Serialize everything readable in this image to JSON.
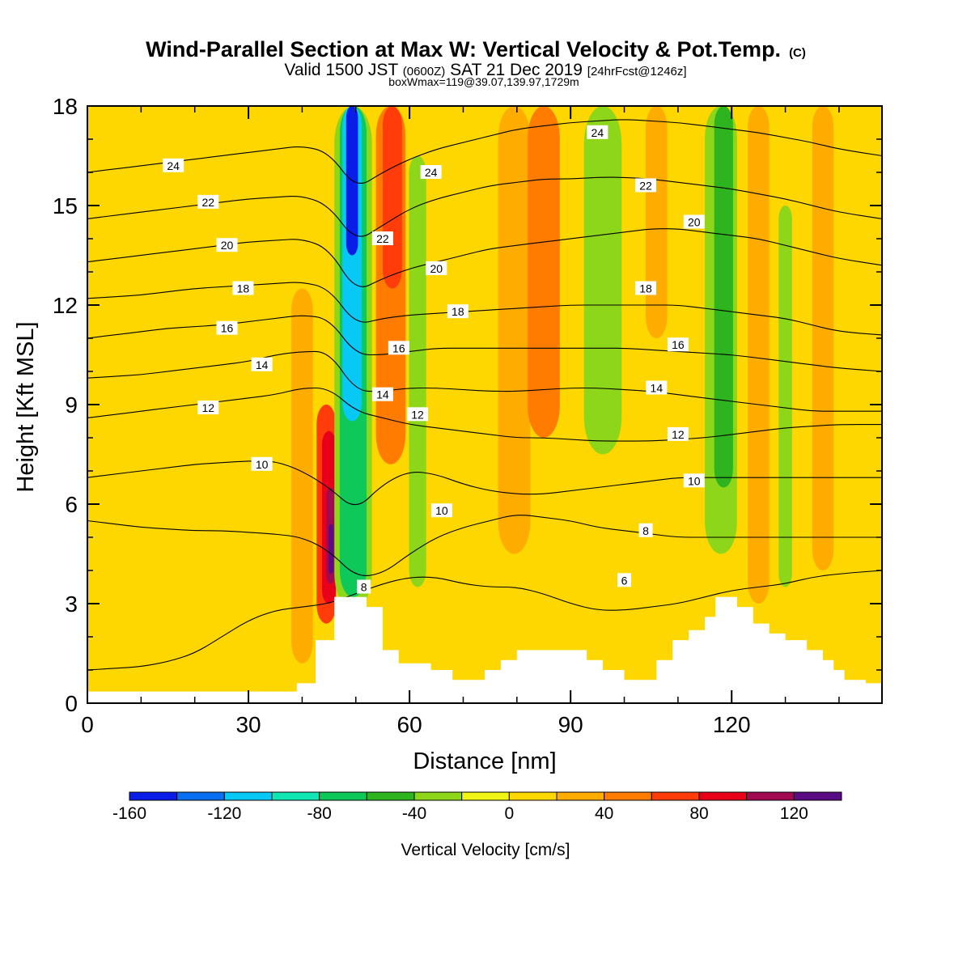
{
  "chart_data": {
    "type": "heatmap",
    "title": "Wind-Parallel Section at Max W: Vertical Velocity & Pot.Temp.",
    "title_mark": "(C)",
    "subtitle": {
      "part1": "Valid 1500 JST",
      "part2": "(0600Z)",
      "part3": "SAT 21 Dec 2019",
      "part4": "[24hrFcst@1246z]"
    },
    "info_line": "boxWmax=119@39.07,139.97,1729m",
    "xlabel": "Distance [nm]",
    "ylabel": "Height [Kft MSL]",
    "xlim": [
      0,
      148
    ],
    "ylim": [
      0,
      18
    ],
    "x_ticks": [
      0,
      30,
      60,
      90,
      120
    ],
    "y_ticks": [
      0,
      3,
      6,
      9,
      12,
      15,
      18
    ],
    "x_tick_labels": [
      "0",
      "30",
      "60",
      "90",
      "120"
    ],
    "y_tick_labels": [
      "0",
      "3",
      "6",
      "9",
      "12",
      "15",
      "18"
    ],
    "colorbar": {
      "label": "Vertical Velocity [cm/s]",
      "bounds": [
        -160,
        -140,
        -120,
        -100,
        -80,
        -60,
        -40,
        -20,
        0,
        20,
        40,
        60,
        80,
        100,
        120,
        140
      ],
      "tick_values": [
        -160,
        -120,
        -80,
        -40,
        0,
        40,
        80,
        120
      ],
      "tick_labels": [
        "-160",
        "-120",
        "-80",
        "-40",
        "0",
        "40",
        "80",
        "120"
      ],
      "colors": [
        "#0a1de6",
        "#0a6ef0",
        "#08c8f5",
        "#10e6b4",
        "#0fc85a",
        "#2db41e",
        "#8ed61a",
        "#f0f514",
        "#ffd700",
        "#ffac00",
        "#ff7c00",
        "#ff3c0a",
        "#e8001a",
        "#a00a50",
        "#5a0a82"
      ]
    },
    "vertical_velocity_bands": [
      {
        "x_center": 40,
        "x_width": 4,
        "y_bottom": 1.2,
        "y_top": 12.5,
        "value": 30
      },
      {
        "x_center": 44.5,
        "x_width": 3.6,
        "y_bottom": 2.4,
        "y_top": 9,
        "value": 60
      },
      {
        "x_center": 45,
        "x_width": 2.6,
        "y_bottom": 3.0,
        "y_top": 8.2,
        "value": 85
      },
      {
        "x_center": 45.3,
        "x_width": 1.6,
        "y_bottom": 3.6,
        "y_top": 6.5,
        "value": 110
      },
      {
        "x_center": 45.4,
        "x_width": 0.9,
        "y_bottom": 3.9,
        "y_top": 5.4,
        "value": 130
      },
      {
        "x_center": 49.5,
        "x_width": 7,
        "y_bottom": 2.8,
        "y_top": 18,
        "value": -35
      },
      {
        "x_center": 49.5,
        "x_width": 5,
        "y_bottom": 3.2,
        "y_top": 18,
        "value": -70
      },
      {
        "x_center": 49.3,
        "x_width": 3.6,
        "y_bottom": 8.5,
        "y_top": 18,
        "value": -110
      },
      {
        "x_center": 49.3,
        "x_width": 2.2,
        "y_bottom": 13.5,
        "y_top": 18,
        "value": -150
      },
      {
        "x_center": 56.5,
        "x_width": 5.5,
        "y_bottom": 7.2,
        "y_top": 18,
        "value": 50
      },
      {
        "x_center": 56.8,
        "x_width": 3.6,
        "y_bottom": 12.5,
        "y_top": 18,
        "value": 75
      },
      {
        "x_center": 61.5,
        "x_width": 3.2,
        "y_bottom": 3.5,
        "y_top": 16.5,
        "value": -25
      },
      {
        "x_center": 79.5,
        "x_width": 6,
        "y_bottom": 4.5,
        "y_top": 18,
        "value": 30
      },
      {
        "x_center": 85,
        "x_width": 6,
        "y_bottom": 8,
        "y_top": 18,
        "value": 45
      },
      {
        "x_center": 96,
        "x_width": 7,
        "y_bottom": 7.5,
        "y_top": 18,
        "value": -30
      },
      {
        "x_center": 106,
        "x_width": 4,
        "y_bottom": 11,
        "y_top": 18,
        "value": 30
      },
      {
        "x_center": 118,
        "x_width": 6,
        "y_bottom": 4.5,
        "y_top": 18,
        "value": -30
      },
      {
        "x_center": 118.5,
        "x_width": 3.5,
        "y_bottom": 6.5,
        "y_top": 18,
        "value": -45
      },
      {
        "x_center": 125,
        "x_width": 4,
        "y_bottom": 3,
        "y_top": 18,
        "value": 30
      },
      {
        "x_center": 130,
        "x_width": 2.5,
        "y_bottom": 3.5,
        "y_top": 15,
        "value": -25
      },
      {
        "x_center": 137,
        "x_width": 4,
        "y_bottom": 4,
        "y_top": 18,
        "value": 25
      }
    ],
    "theta_contours": [
      {
        "level": 6,
        "y": [
          1.0,
          1.05,
          1.1,
          1.25,
          1.5,
          2.0,
          2.5,
          2.8,
          2.9,
          3.0,
          3.3,
          3.6,
          3.8,
          3.8,
          3.6,
          3.5,
          3.5,
          3.3,
          3.0,
          2.8,
          2.8,
          2.9,
          3.0,
          3.2,
          3.4,
          3.5,
          3.6,
          3.8,
          3.9,
          4.0
        ]
      },
      {
        "level": 8,
        "y": [
          5.5,
          5.4,
          5.3,
          5.25,
          5.2,
          5.2,
          5.15,
          5.1,
          5.0,
          4.6,
          3.8,
          3.9,
          4.5,
          5.0,
          5.3,
          5.5,
          5.7,
          5.6,
          5.5,
          5.3,
          5.2,
          5.1,
          5.0,
          5.0,
          5.0,
          5.0,
          5.0,
          5.0,
          5.0,
          5.0
        ]
      },
      {
        "level": 10,
        "y": [
          6.8,
          6.9,
          7.0,
          7.1,
          7.2,
          7.25,
          7.3,
          7.3,
          7.0,
          6.5,
          5.8,
          6.6,
          7.0,
          6.9,
          6.6,
          6.4,
          6.3,
          6.3,
          6.4,
          6.5,
          6.6,
          6.7,
          6.8,
          6.8,
          6.8,
          6.8,
          6.8,
          6.8,
          6.8,
          6.8
        ]
      },
      {
        "level": 12,
        "y": [
          8.6,
          8.7,
          8.8,
          8.9,
          9.0,
          9.1,
          9.2,
          9.3,
          9.5,
          9.5,
          8.8,
          8.6,
          8.4,
          8.3,
          8.2,
          8.1,
          8.0,
          8.0,
          7.95,
          7.9,
          7.9,
          7.9,
          7.95,
          8.0,
          8.1,
          8.2,
          8.3,
          8.35,
          8.4,
          8.4
        ]
      },
      {
        "level": 14,
        "y": [
          9.8,
          9.85,
          9.9,
          10.0,
          10.1,
          10.2,
          10.3,
          10.5,
          10.6,
          10.6,
          9.4,
          9.4,
          9.5,
          9.5,
          9.45,
          9.4,
          9.4,
          9.45,
          9.5,
          9.5,
          9.45,
          9.4,
          9.3,
          9.2,
          9.1,
          9.0,
          8.9,
          8.8,
          8.8,
          8.8
        ]
      },
      {
        "level": 16,
        "y": [
          11.0,
          11.1,
          11.2,
          11.3,
          11.35,
          11.4,
          11.5,
          11.6,
          11.7,
          11.6,
          10.5,
          10.5,
          10.6,
          10.7,
          10.7,
          10.7,
          10.7,
          10.7,
          10.7,
          10.7,
          10.7,
          10.65,
          10.6,
          10.55,
          10.5,
          10.4,
          10.3,
          10.2,
          10.1,
          10.0
        ]
      },
      {
        "level": 18,
        "y": [
          12.2,
          12.25,
          12.3,
          12.4,
          12.5,
          12.55,
          12.6,
          12.65,
          12.7,
          12.5,
          11.4,
          11.6,
          11.7,
          11.75,
          11.8,
          11.85,
          11.9,
          11.95,
          12.0,
          12.0,
          12.0,
          12.0,
          12.0,
          11.9,
          11.8,
          11.7,
          11.6,
          11.4,
          11.2,
          11.1
        ]
      },
      {
        "level": 20,
        "y": [
          13.3,
          13.4,
          13.5,
          13.6,
          13.7,
          13.8,
          13.9,
          13.95,
          14.0,
          13.7,
          12.4,
          12.8,
          13.1,
          13.3,
          13.5,
          13.7,
          13.8,
          13.9,
          14.0,
          14.1,
          14.2,
          14.3,
          14.3,
          14.2,
          14.1,
          14.0,
          13.8,
          13.6,
          13.4,
          13.2
        ]
      },
      {
        "level": 22,
        "y": [
          14.6,
          14.7,
          14.8,
          14.9,
          15.0,
          15.1,
          15.2,
          15.25,
          15.3,
          15.0,
          13.9,
          14.4,
          14.9,
          15.2,
          15.4,
          15.6,
          15.7,
          15.8,
          15.8,
          15.85,
          15.85,
          15.8,
          15.7,
          15.6,
          15.5,
          15.35,
          15.2,
          15.0,
          14.8,
          14.6
        ]
      },
      {
        "level": 24,
        "y": [
          16.0,
          16.1,
          16.2,
          16.3,
          16.4,
          16.5,
          16.6,
          16.7,
          16.8,
          16.6,
          15.5,
          16.0,
          16.4,
          16.7,
          16.9,
          17.1,
          17.3,
          17.4,
          17.5,
          17.55,
          17.6,
          17.55,
          17.5,
          17.4,
          17.3,
          17.2,
          17.05,
          16.9,
          16.7,
          16.5
        ]
      }
    ],
    "theta_x": [
      0,
      5,
      10,
      15,
      20,
      25,
      30,
      35,
      40,
      45,
      50,
      55,
      60,
      65,
      70,
      75,
      80,
      85,
      90,
      95,
      100,
      105,
      110,
      115,
      120,
      125,
      130,
      135,
      140,
      148
    ],
    "contour_labels": [
      {
        "text": "24",
        "x": 16,
        "y": 16.2
      },
      {
        "text": "22",
        "x": 22.5,
        "y": 15.1
      },
      {
        "text": "20",
        "x": 26,
        "y": 13.8
      },
      {
        "text": "18",
        "x": 29,
        "y": 12.5
      },
      {
        "text": "16",
        "x": 26,
        "y": 11.3
      },
      {
        "text": "14",
        "x": 32.5,
        "y": 10.2
      },
      {
        "text": "12",
        "x": 22.5,
        "y": 8.9
      },
      {
        "text": "10",
        "x": 32.5,
        "y": 7.2
      },
      {
        "text": "22",
        "x": 55,
        "y": 14.0
      },
      {
        "text": "24",
        "x": 64,
        "y": 16.0
      },
      {
        "text": "20",
        "x": 65,
        "y": 13.1
      },
      {
        "text": "18",
        "x": 69,
        "y": 11.8
      },
      {
        "text": "16",
        "x": 58,
        "y": 10.7
      },
      {
        "text": "14",
        "x": 55,
        "y": 9.3
      },
      {
        "text": "12",
        "x": 61.5,
        "y": 8.7
      },
      {
        "text": "10",
        "x": 66,
        "y": 5.8
      },
      {
        "text": "8",
        "x": 51.5,
        "y": 3.5
      },
      {
        "text": "24",
        "x": 95,
        "y": 17.2
      },
      {
        "text": "22",
        "x": 104,
        "y": 15.6
      },
      {
        "text": "20",
        "x": 113,
        "y": 14.5
      },
      {
        "text": "18",
        "x": 104,
        "y": 12.5
      },
      {
        "text": "16",
        "x": 110,
        "y": 10.8
      },
      {
        "text": "14",
        "x": 106,
        "y": 9.5
      },
      {
        "text": "12",
        "x": 110,
        "y": 8.1
      },
      {
        "text": "10",
        "x": 113,
        "y": 6.7
      },
      {
        "text": "8",
        "x": 104,
        "y": 5.2
      },
      {
        "text": "6",
        "x": 100,
        "y": 3.7
      }
    ],
    "terrain": {
      "x": [
        0,
        39,
        39,
        42.5,
        42.5,
        46,
        46,
        52,
        52,
        55,
        55,
        58,
        58,
        64,
        64,
        68,
        68,
        74,
        74,
        77,
        77,
        80,
        80,
        83,
        83,
        93,
        93,
        96,
        96,
        100,
        100,
        106,
        106,
        109,
        109,
        112,
        112,
        115,
        115,
        117,
        117,
        121,
        121,
        124,
        124,
        127,
        127,
        130,
        130,
        134,
        134,
        137,
        137,
        139,
        139,
        141,
        141,
        145,
        145,
        148
      ],
      "y": [
        0.35,
        0.35,
        0.6,
        0.6,
        1.9,
        1.9,
        3.2,
        3.2,
        2.9,
        2.9,
        1.6,
        1.6,
        1.2,
        1.2,
        1.0,
        1.0,
        0.7,
        0.7,
        1.0,
        1.0,
        1.3,
        1.3,
        1.6,
        1.6,
        1.6,
        1.6,
        1.3,
        1.3,
        1.0,
        1.0,
        0.7,
        0.7,
        1.3,
        1.3,
        1.9,
        1.9,
        2.2,
        2.2,
        2.6,
        2.6,
        3.2,
        3.2,
        2.9,
        2.9,
        2.4,
        2.4,
        2.1,
        2.1,
        1.9,
        1.9,
        1.6,
        1.6,
        1.3,
        1.3,
        1.0,
        1.0,
        0.7,
        0.7,
        0.6,
        0.6
      ]
    }
  }
}
